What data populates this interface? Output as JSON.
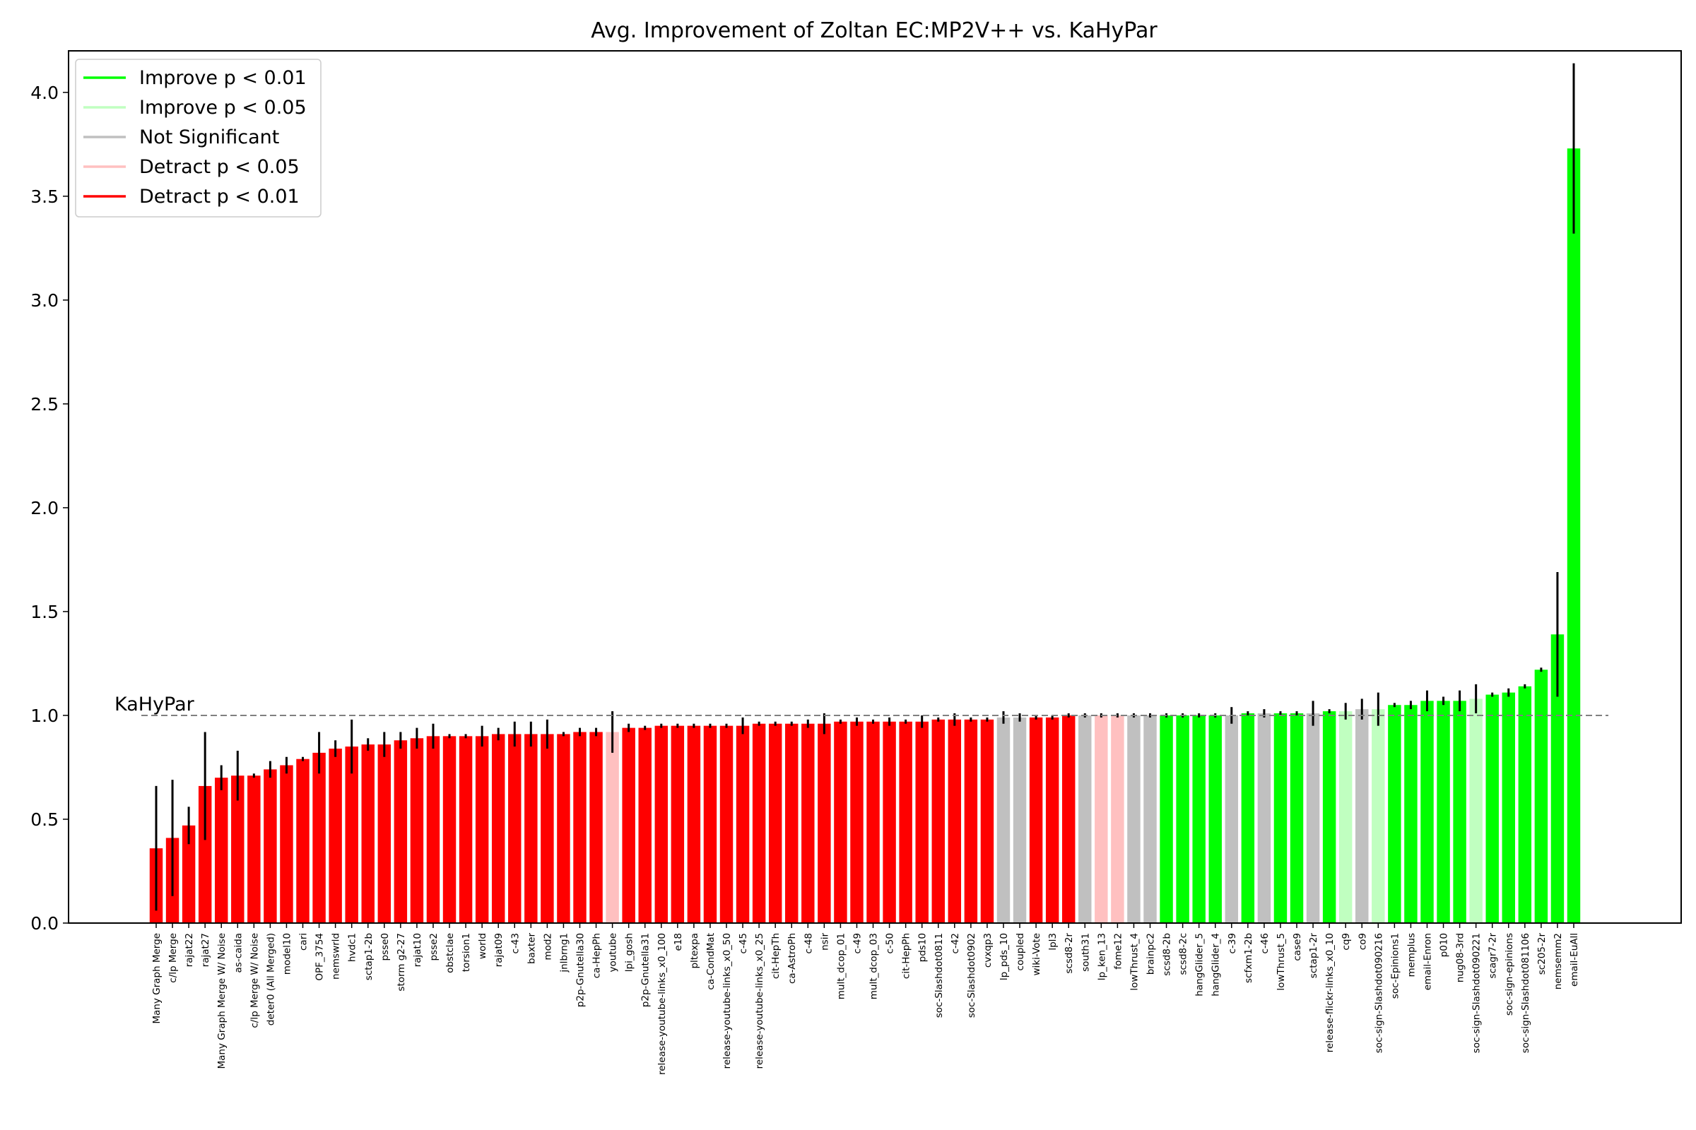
{
  "chart_data": {
    "type": "bar",
    "title": "Avg. Improvement of Zoltan EC:MP2V++ vs. KaHyPar",
    "xlabel": "",
    "ylabel": "",
    "ylim": [
      0,
      4.2
    ],
    "yticks": [
      0.0,
      0.5,
      1.0,
      1.5,
      2.0,
      2.5,
      3.0,
      3.5,
      4.0
    ],
    "ytick_labels": [
      "0.0",
      "0.5",
      "1.0",
      "1.5",
      "2.0",
      "2.5",
      "3.0",
      "3.5",
      "4.0"
    ],
    "reference_line": {
      "y": 1.0,
      "label": "KaHyPar",
      "style": "dashed",
      "color": "#808080"
    },
    "grid": false,
    "legend": {
      "placement": "top-left",
      "entries": [
        {
          "key": "imp01",
          "label": "Improve p < 0.01",
          "color": "#00ff00"
        },
        {
          "key": "imp05",
          "label": "Improve p < 0.05",
          "color": "#c0ffc0"
        },
        {
          "key": "ns",
          "label": "Not Significant",
          "color": "#c0c0c0"
        },
        {
          "key": "det05",
          "label": "Detract p < 0.05",
          "color": "#ffc0c0"
        },
        {
          "key": "det01",
          "label": "Detract p < 0.01",
          "color": "#ff0000"
        }
      ]
    },
    "categories": [
      "Many Graph Merge",
      "c/lp Merge",
      "rajat22",
      "rajat27",
      "Many Graph Merge W/ Noise",
      "as-caida",
      "c/lp Merge W/ Noise",
      "deter0 (All Merged)",
      "model10",
      "cari",
      "OPF_3754",
      "nemswrld",
      "hvdc1",
      "sctap1-2b",
      "psse0",
      "storm g2-27",
      "rajat10",
      "psse2",
      "obstclae",
      "torsion1",
      "world",
      "rajat09",
      "c-43",
      "baxter",
      "mod2",
      "jnlbrng1",
      "p2p-Gnutella30",
      "ca-HepPh",
      "youtube",
      "lpi_gosh",
      "p2p-Gnutella31",
      "release-youtube-links_x0_100",
      "e18",
      "pltexpa",
      "ca-CondMat",
      "release-youtube-links_x0_50",
      "c-45",
      "release-youtube-links_x0_25",
      "cit-HepTh",
      "ca-AstroPh",
      "c-48",
      "nsir",
      "mult_dcop_01",
      "c-49",
      "mult_dcop_03",
      "c-50",
      "cit-HepPh",
      "pds10",
      "soc-Slashdot0811",
      "c-42",
      "soc-Slashdot0902",
      "cvxqp3",
      "lp_pds_10",
      "coupled",
      "wiki-Vote",
      "lpl3",
      "scsd8-2r",
      "south31",
      "lp_ken_13",
      "fome12",
      "lowThrust_4",
      "brainpc2",
      "scsd8-2b",
      "scsd8-2c",
      "hangGlider_5",
      "hangGlider_4",
      "c-39",
      "scfxm1-2b",
      "c-46",
      "lowThrust_5",
      "case9",
      "sctap1-2r",
      "release-flickr-links_x0_10",
      "cq9",
      "co9",
      "soc-sign-Slashdot090216",
      "soc-Epinions1",
      "memplus",
      "email-Enron",
      "p010",
      "nug08-3rd",
      "soc-sign-Slashdot090221",
      "scagr7-2r",
      "soc-sign-epinions",
      "soc-sign-Slashdot081106",
      "sc205-2r",
      "nemsemm2",
      "email-EuAll"
    ],
    "values": [
      0.36,
      0.41,
      0.47,
      0.66,
      0.7,
      0.71,
      0.71,
      0.74,
      0.76,
      0.79,
      0.82,
      0.84,
      0.85,
      0.86,
      0.86,
      0.88,
      0.89,
      0.9,
      0.9,
      0.9,
      0.9,
      0.91,
      0.91,
      0.91,
      0.91,
      0.91,
      0.92,
      0.92,
      0.92,
      0.94,
      0.94,
      0.95,
      0.95,
      0.95,
      0.95,
      0.95,
      0.95,
      0.96,
      0.96,
      0.96,
      0.96,
      0.96,
      0.97,
      0.97,
      0.97,
      0.97,
      0.97,
      0.97,
      0.98,
      0.98,
      0.98,
      0.98,
      0.99,
      0.99,
      0.99,
      0.99,
      1.0,
      1.0,
      1.0,
      1.0,
      1.0,
      1.0,
      1.0,
      1.0,
      1.0,
      1.0,
      1.0,
      1.01,
      1.01,
      1.01,
      1.01,
      1.01,
      1.02,
      1.02,
      1.03,
      1.03,
      1.05,
      1.05,
      1.07,
      1.07,
      1.07,
      1.08,
      1.1,
      1.11,
      1.14,
      1.22,
      1.39,
      3.73
    ],
    "errors": [
      0.3,
      0.28,
      0.09,
      0.26,
      0.06,
      0.12,
      0.01,
      0.04,
      0.04,
      0.01,
      0.1,
      0.04,
      0.13,
      0.03,
      0.06,
      0.04,
      0.05,
      0.06,
      0.01,
      0.01,
      0.05,
      0.03,
      0.06,
      0.06,
      0.07,
      0.01,
      0.02,
      0.02,
      0.1,
      0.02,
      0.01,
      0.01,
      0.01,
      0.01,
      0.01,
      0.01,
      0.04,
      0.01,
      0.01,
      0.01,
      0.02,
      0.05,
      0.01,
      0.02,
      0.01,
      0.02,
      0.01,
      0.03,
      0.01,
      0.03,
      0.01,
      0.01,
      0.03,
      0.02,
      0.01,
      0.01,
      0.01,
      0.01,
      0.01,
      0.01,
      0.01,
      0.01,
      0.01,
      0.01,
      0.01,
      0.01,
      0.04,
      0.01,
      0.02,
      0.01,
      0.01,
      0.06,
      0.01,
      0.04,
      0.05,
      0.08,
      0.01,
      0.02,
      0.05,
      0.02,
      0.05,
      0.07,
      0.01,
      0.02,
      0.01,
      0.01,
      0.3,
      0.41
    ],
    "significance": [
      "det01",
      "det01",
      "det01",
      "det01",
      "det01",
      "det01",
      "det01",
      "det01",
      "det01",
      "det01",
      "det01",
      "det01",
      "det01",
      "det01",
      "det01",
      "det01",
      "det01",
      "det01",
      "det01",
      "det01",
      "det01",
      "det01",
      "det01",
      "det01",
      "det01",
      "det01",
      "det01",
      "det01",
      "det05",
      "det01",
      "det01",
      "det01",
      "det01",
      "det01",
      "det01",
      "det01",
      "det01",
      "det01",
      "det01",
      "det01",
      "det01",
      "det01",
      "det01",
      "det01",
      "det01",
      "det01",
      "det01",
      "det01",
      "det01",
      "det01",
      "det01",
      "det01",
      "ns",
      "ns",
      "det01",
      "det01",
      "det01",
      "ns",
      "det05",
      "det05",
      "ns",
      "ns",
      "imp01",
      "imp01",
      "imp01",
      "imp01",
      "ns",
      "imp01",
      "ns",
      "imp01",
      "imp01",
      "ns",
      "imp01",
      "imp05",
      "ns",
      "imp05",
      "imp01",
      "imp01",
      "imp01",
      "imp01",
      "imp01",
      "imp05",
      "imp01",
      "imp01",
      "imp01",
      "imp01",
      "imp01",
      "imp01"
    ]
  }
}
